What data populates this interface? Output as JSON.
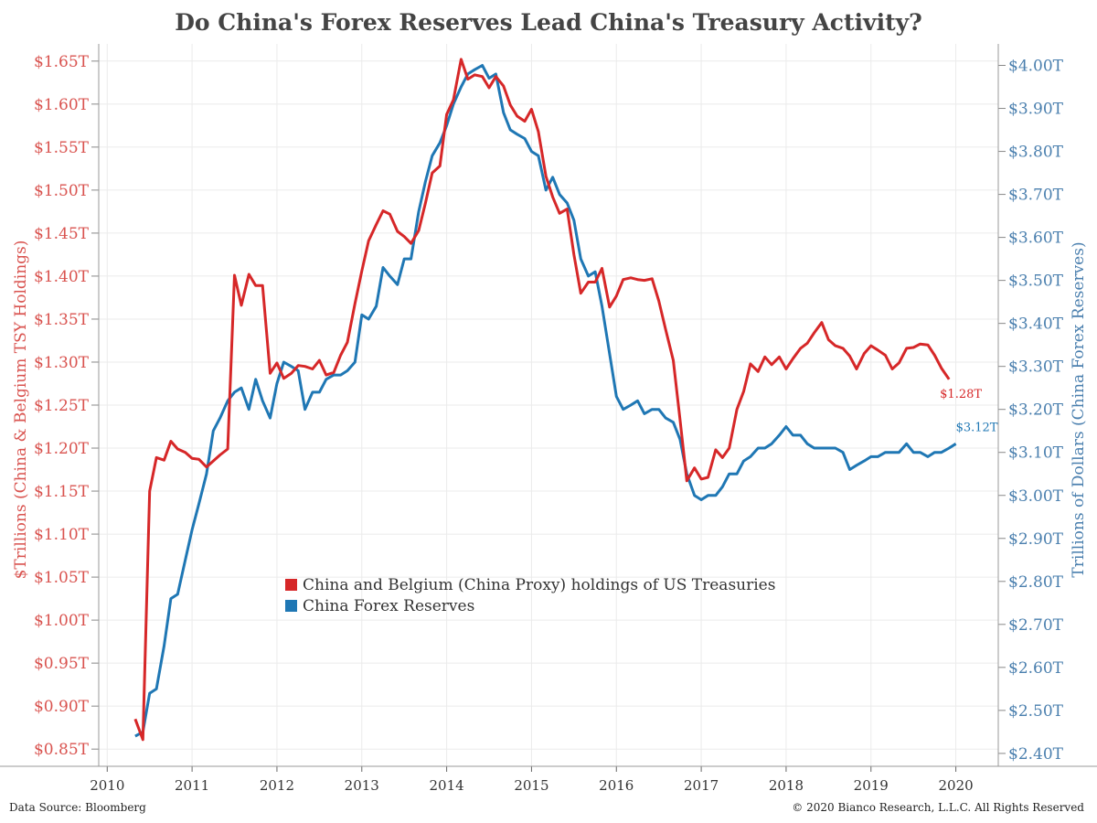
{
  "title": "Do China's Forex Reserves Lead China's Treasury Activity?",
  "source": "Data Source: Bloomberg",
  "copyright": "© 2020 Bianco Research, L.L.C. All Rights Reserved",
  "colors": {
    "red": "#d62728",
    "blue": "#1f77b4",
    "left_axis": "#d9534f",
    "right_axis": "#4a7fae",
    "grid": "#ebebeb"
  },
  "chart_data": {
    "type": "line",
    "ylabel_left": "$Trillions (China & Belgium TSY Holdings)",
    "ylabel_right": "Trillions of Dollars (China Forex Reserves)",
    "xticks": [
      "2010",
      "2011",
      "2012",
      "2013",
      "2014",
      "2015",
      "2016",
      "2017",
      "2018",
      "2019",
      "2020"
    ],
    "yticks_left": [
      "$0.85T",
      "$0.90T",
      "$0.95T",
      "$1.00T",
      "$1.05T",
      "$1.10T",
      "$1.15T",
      "$1.20T",
      "$1.25T",
      "$1.30T",
      "$1.35T",
      "$1.40T",
      "$1.45T",
      "$1.50T",
      "$1.55T",
      "$1.60T",
      "$1.65T"
    ],
    "yticks_right": [
      "$2.40T",
      "$2.50T",
      "$2.60T",
      "$2.70T",
      "$2.80T",
      "$2.90T",
      "$3.00T",
      "$3.10T",
      "$3.20T",
      "$3.30T",
      "$3.40T",
      "$3.50T",
      "$3.60T",
      "$3.70T",
      "$3.80T",
      "$3.90T",
      "$4.00T"
    ],
    "ylim_left": [
      0.83,
      1.67
    ],
    "ylim_right": [
      2.37,
      4.05
    ],
    "xlim": [
      2009.9,
      2020.5
    ],
    "legend": [
      "China and Belgium (China Proxy) holdings of US Treasuries",
      "China Forex Reserves"
    ],
    "end_labels": {
      "tsy": "$1.28T",
      "fx": "$3.12T"
    },
    "series": [
      {
        "name": "China and Belgium (China Proxy) holdings of US Treasuries",
        "axis": "left",
        "points": [
          [
            2010.33,
            0.885
          ],
          [
            2010.42,
            0.861
          ],
          [
            2010.5,
            1.15
          ],
          [
            2010.58,
            1.189
          ],
          [
            2010.67,
            1.186
          ],
          [
            2010.75,
            1.208
          ],
          [
            2010.83,
            1.199
          ],
          [
            2010.92,
            1.195
          ],
          [
            2011.0,
            1.188
          ],
          [
            2011.08,
            1.187
          ],
          [
            2011.17,
            1.178
          ],
          [
            2011.25,
            1.185
          ],
          [
            2011.33,
            1.192
          ],
          [
            2011.42,
            1.199
          ],
          [
            2011.5,
            1.401
          ],
          [
            2011.58,
            1.366
          ],
          [
            2011.67,
            1.402
          ],
          [
            2011.75,
            1.389
          ],
          [
            2011.83,
            1.389
          ],
          [
            2011.92,
            1.287
          ],
          [
            2012.0,
            1.299
          ],
          [
            2012.08,
            1.281
          ],
          [
            2012.17,
            1.287
          ],
          [
            2012.25,
            1.296
          ],
          [
            2012.33,
            1.295
          ],
          [
            2012.42,
            1.292
          ],
          [
            2012.5,
            1.302
          ],
          [
            2012.58,
            1.285
          ],
          [
            2012.67,
            1.288
          ],
          [
            2012.75,
            1.308
          ],
          [
            2012.83,
            1.323
          ],
          [
            2012.92,
            1.368
          ],
          [
            2013.0,
            1.406
          ],
          [
            2013.08,
            1.441
          ],
          [
            2013.17,
            1.46
          ],
          [
            2013.25,
            1.476
          ],
          [
            2013.33,
            1.472
          ],
          [
            2013.42,
            1.452
          ],
          [
            2013.5,
            1.446
          ],
          [
            2013.58,
            1.438
          ],
          [
            2013.67,
            1.453
          ],
          [
            2013.75,
            1.485
          ],
          [
            2013.83,
            1.52
          ],
          [
            2013.92,
            1.528
          ],
          [
            2014.0,
            1.588
          ],
          [
            2014.08,
            1.605
          ],
          [
            2014.17,
            1.652
          ],
          [
            2014.25,
            1.629
          ],
          [
            2014.33,
            1.634
          ],
          [
            2014.42,
            1.632
          ],
          [
            2014.5,
            1.619
          ],
          [
            2014.58,
            1.632
          ],
          [
            2014.67,
            1.621
          ],
          [
            2014.75,
            1.599
          ],
          [
            2014.83,
            1.586
          ],
          [
            2014.92,
            1.58
          ],
          [
            2015.0,
            1.594
          ],
          [
            2015.08,
            1.568
          ],
          [
            2015.17,
            1.516
          ],
          [
            2015.25,
            1.492
          ],
          [
            2015.33,
            1.473
          ],
          [
            2015.42,
            1.478
          ],
          [
            2015.5,
            1.425
          ],
          [
            2015.58,
            1.38
          ],
          [
            2015.67,
            1.393
          ],
          [
            2015.75,
            1.393
          ],
          [
            2015.83,
            1.409
          ],
          [
            2015.92,
            1.364
          ],
          [
            2016.0,
            1.377
          ],
          [
            2016.08,
            1.396
          ],
          [
            2016.17,
            1.398
          ],
          [
            2016.25,
            1.396
          ],
          [
            2016.33,
            1.395
          ],
          [
            2016.42,
            1.397
          ],
          [
            2016.5,
            1.371
          ],
          [
            2016.58,
            1.338
          ],
          [
            2016.67,
            1.302
          ],
          [
            2016.75,
            1.233
          ],
          [
            2016.83,
            1.162
          ],
          [
            2016.92,
            1.177
          ],
          [
            2017.0,
            1.164
          ],
          [
            2017.08,
            1.166
          ],
          [
            2017.17,
            1.198
          ],
          [
            2017.25,
            1.189
          ],
          [
            2017.33,
            1.2
          ],
          [
            2017.42,
            1.245
          ],
          [
            2017.5,
            1.266
          ],
          [
            2017.58,
            1.298
          ],
          [
            2017.67,
            1.289
          ],
          [
            2017.75,
            1.306
          ],
          [
            2017.83,
            1.297
          ],
          [
            2017.92,
            1.306
          ],
          [
            2018.0,
            1.292
          ],
          [
            2018.08,
            1.304
          ],
          [
            2018.17,
            1.316
          ],
          [
            2018.25,
            1.322
          ],
          [
            2018.33,
            1.334
          ],
          [
            2018.42,
            1.346
          ],
          [
            2018.5,
            1.326
          ],
          [
            2018.58,
            1.319
          ],
          [
            2018.67,
            1.316
          ],
          [
            2018.75,
            1.307
          ],
          [
            2018.83,
            1.292
          ],
          [
            2018.92,
            1.31
          ],
          [
            2019.0,
            1.319
          ],
          [
            2019.08,
            1.314
          ],
          [
            2019.17,
            1.308
          ],
          [
            2019.25,
            1.292
          ],
          [
            2019.33,
            1.299
          ],
          [
            2019.42,
            1.316
          ],
          [
            2019.5,
            1.317
          ],
          [
            2019.58,
            1.321
          ],
          [
            2019.67,
            1.32
          ],
          [
            2019.75,
            1.308
          ],
          [
            2019.83,
            1.293
          ],
          [
            2019.92,
            1.28
          ]
        ]
      },
      {
        "name": "China Forex Reserves",
        "axis": "right",
        "points": [
          [
            2010.33,
            2.44
          ],
          [
            2010.42,
            2.45
          ],
          [
            2010.5,
            2.54
          ],
          [
            2010.58,
            2.55
          ],
          [
            2010.67,
            2.65
          ],
          [
            2010.75,
            2.76
          ],
          [
            2010.83,
            2.77
          ],
          [
            2010.92,
            2.85
          ],
          [
            2011.0,
            2.92
          ],
          [
            2011.08,
            2.98
          ],
          [
            2011.17,
            3.05
          ],
          [
            2011.25,
            3.15
          ],
          [
            2011.33,
            3.18
          ],
          [
            2011.42,
            3.22
          ],
          [
            2011.5,
            3.24
          ],
          [
            2011.58,
            3.25
          ],
          [
            2011.67,
            3.2
          ],
          [
            2011.75,
            3.27
          ],
          [
            2011.83,
            3.22
          ],
          [
            2011.92,
            3.18
          ],
          [
            2012.0,
            3.26
          ],
          [
            2012.08,
            3.31
          ],
          [
            2012.17,
            3.3
          ],
          [
            2012.25,
            3.29
          ],
          [
            2012.33,
            3.2
          ],
          [
            2012.42,
            3.24
          ],
          [
            2012.5,
            3.24
          ],
          [
            2012.58,
            3.27
          ],
          [
            2012.67,
            3.28
          ],
          [
            2012.75,
            3.28
          ],
          [
            2012.83,
            3.29
          ],
          [
            2012.92,
            3.31
          ],
          [
            2013.0,
            3.42
          ],
          [
            2013.08,
            3.41
          ],
          [
            2013.17,
            3.44
          ],
          [
            2013.25,
            3.53
          ],
          [
            2013.33,
            3.51
          ],
          [
            2013.42,
            3.49
          ],
          [
            2013.5,
            3.55
          ],
          [
            2013.58,
            3.55
          ],
          [
            2013.67,
            3.66
          ],
          [
            2013.75,
            3.73
          ],
          [
            2013.83,
            3.79
          ],
          [
            2013.92,
            3.82
          ],
          [
            2014.0,
            3.86
          ],
          [
            2014.08,
            3.91
          ],
          [
            2014.17,
            3.95
          ],
          [
            2014.25,
            3.98
          ],
          [
            2014.33,
            3.99
          ],
          [
            2014.42,
            4.0
          ],
          [
            2014.5,
            3.97
          ],
          [
            2014.58,
            3.98
          ],
          [
            2014.67,
            3.89
          ],
          [
            2014.75,
            3.85
          ],
          [
            2014.83,
            3.84
          ],
          [
            2014.92,
            3.83
          ],
          [
            2015.0,
            3.8
          ],
          [
            2015.08,
            3.79
          ],
          [
            2015.17,
            3.71
          ],
          [
            2015.25,
            3.74
          ],
          [
            2015.33,
            3.7
          ],
          [
            2015.42,
            3.68
          ],
          [
            2015.5,
            3.64
          ],
          [
            2015.58,
            3.55
          ],
          [
            2015.67,
            3.51
          ],
          [
            2015.75,
            3.52
          ],
          [
            2015.83,
            3.44
          ],
          [
            2015.92,
            3.33
          ],
          [
            2016.0,
            3.23
          ],
          [
            2016.08,
            3.2
          ],
          [
            2016.17,
            3.21
          ],
          [
            2016.25,
            3.22
          ],
          [
            2016.33,
            3.19
          ],
          [
            2016.42,
            3.2
          ],
          [
            2016.5,
            3.2
          ],
          [
            2016.58,
            3.18
          ],
          [
            2016.67,
            3.17
          ],
          [
            2016.75,
            3.13
          ],
          [
            2016.83,
            3.05
          ],
          [
            2016.92,
            3.0
          ],
          [
            2017.0,
            2.99
          ],
          [
            2017.08,
            3.0
          ],
          [
            2017.17,
            3.0
          ],
          [
            2017.25,
            3.02
          ],
          [
            2017.33,
            3.05
          ],
          [
            2017.42,
            3.05
          ],
          [
            2017.5,
            3.08
          ],
          [
            2017.58,
            3.09
          ],
          [
            2017.67,
            3.11
          ],
          [
            2017.75,
            3.11
          ],
          [
            2017.83,
            3.12
          ],
          [
            2017.92,
            3.14
          ],
          [
            2018.0,
            3.16
          ],
          [
            2018.08,
            3.14
          ],
          [
            2018.17,
            3.14
          ],
          [
            2018.25,
            3.12
          ],
          [
            2018.33,
            3.11
          ],
          [
            2018.42,
            3.11
          ],
          [
            2018.5,
            3.11
          ],
          [
            2018.58,
            3.11
          ],
          [
            2018.67,
            3.1
          ],
          [
            2018.75,
            3.06
          ],
          [
            2018.83,
            3.07
          ],
          [
            2018.92,
            3.08
          ],
          [
            2019.0,
            3.09
          ],
          [
            2019.08,
            3.09
          ],
          [
            2019.17,
            3.1
          ],
          [
            2019.25,
            3.1
          ],
          [
            2019.33,
            3.1
          ],
          [
            2019.42,
            3.12
          ],
          [
            2019.5,
            3.1
          ],
          [
            2019.58,
            3.1
          ],
          [
            2019.67,
            3.09
          ],
          [
            2019.75,
            3.1
          ],
          [
            2019.83,
            3.1
          ],
          [
            2019.92,
            3.11
          ],
          [
            2020.0,
            3.12
          ]
        ]
      }
    ]
  }
}
